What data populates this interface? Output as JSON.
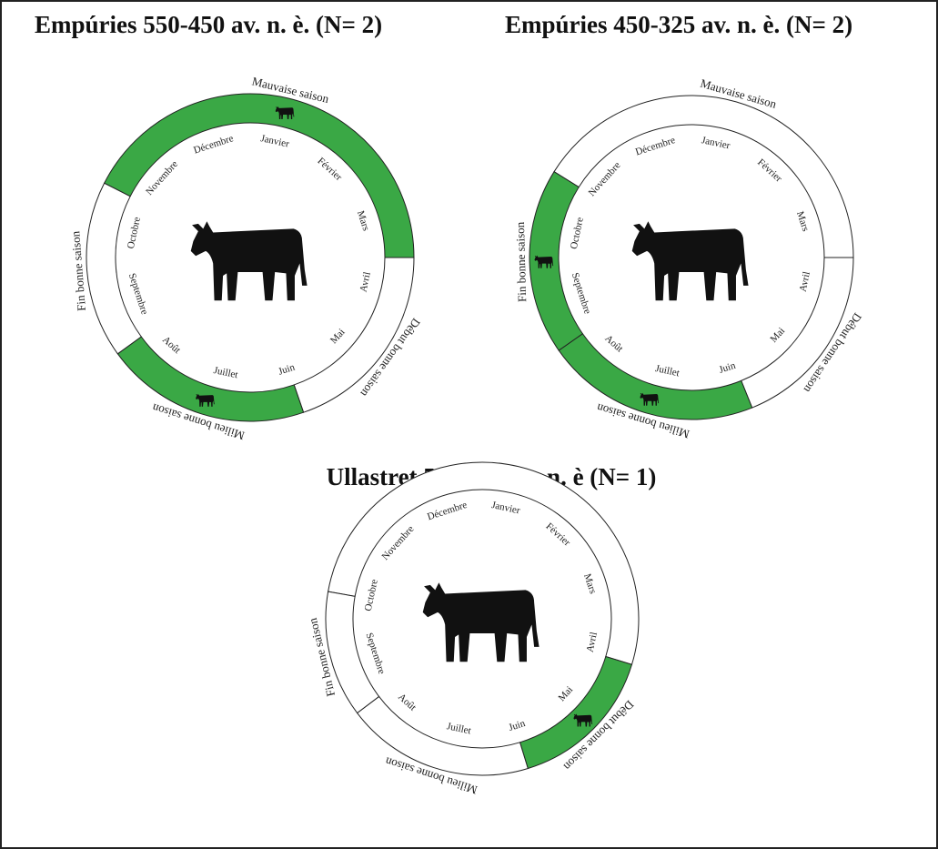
{
  "wheels": [
    {
      "title": "Empúries 550-450 av. n. è. (N= 2)",
      "months": [
        "Janvier",
        "Février",
        "Mars",
        "Avril",
        "Mai",
        "Juin",
        "Juillet",
        "Août",
        "Septembre",
        "Octobre",
        "Novembre",
        "Décembre"
      ],
      "seasons": [
        {
          "label": "Mauvaise saison",
          "highlighted": true
        },
        {
          "label": "Début bonne saison",
          "highlighted": false
        },
        {
          "label": "Milieu bonne saison",
          "highlighted": true
        },
        {
          "label": "Fin bonne saison",
          "highlighted": false
        }
      ]
    },
    {
      "title": "Empúries 450-325 av. n. è. (N= 2)",
      "months": [
        "Janvier",
        "Février",
        "Mars",
        "Avril",
        "Mai",
        "Juin",
        "Juillet",
        "Août",
        "Septembre",
        "Octobre",
        "Novembre",
        "Décembre"
      ],
      "seasons": [
        {
          "label": "Mauvaise saison",
          "highlighted": false
        },
        {
          "label": "Début bonne saison",
          "highlighted": false
        },
        {
          "label": "Milieu bonne saison",
          "highlighted": true
        },
        {
          "label": "Fin bonne saison",
          "highlighted": true
        }
      ]
    },
    {
      "title": "Ullastret 550-450 av. n. è (N= 1)",
      "months": [
        "Janvier",
        "Février",
        "Mars",
        "Avril",
        "Mai",
        "Juin",
        "Juillet",
        "Août",
        "Septembre",
        "Octobre",
        "Novembre",
        "Décembre"
      ],
      "seasons": [
        {
          "highlighted": false
        },
        {
          "label": "Début bonne saison",
          "highlighted": true
        },
        {
          "label": "Milieu bonne saison",
          "highlighted": false
        },
        {
          "label": "Fin bonne saison",
          "highlighted": false
        }
      ]
    }
  ]
}
